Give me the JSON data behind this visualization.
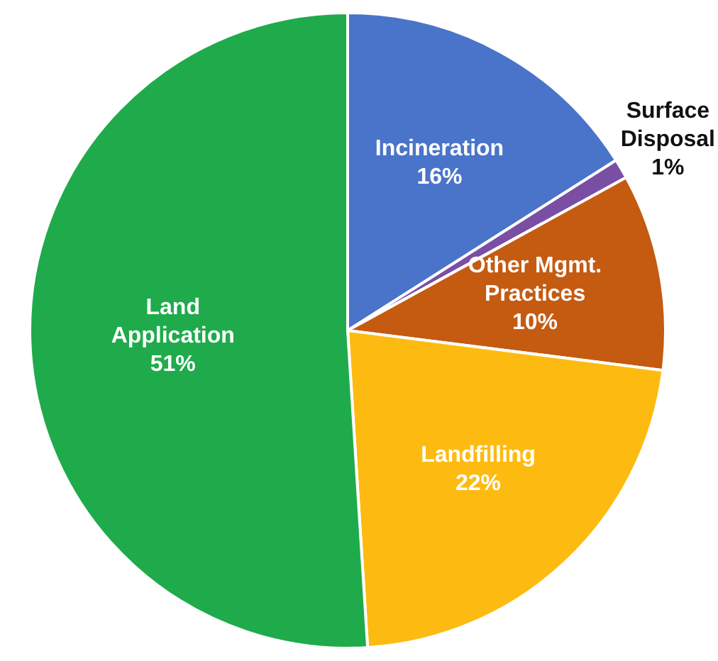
{
  "chart_data": {
    "type": "pie",
    "categories": [
      "Incineration",
      "Surface Disposal",
      "Other Mgmt. Practices",
      "Landfilling",
      "Land Application"
    ],
    "values": [
      16,
      1,
      10,
      22,
      51
    ],
    "value_labels": [
      "16%",
      "1%",
      "10%",
      "22%",
      "51%"
    ],
    "colors": [
      "#4a74c9",
      "#7a4fa3",
      "#c55a11",
      "#fdbb12",
      "#1fab4b"
    ],
    "legend": false
  }
}
